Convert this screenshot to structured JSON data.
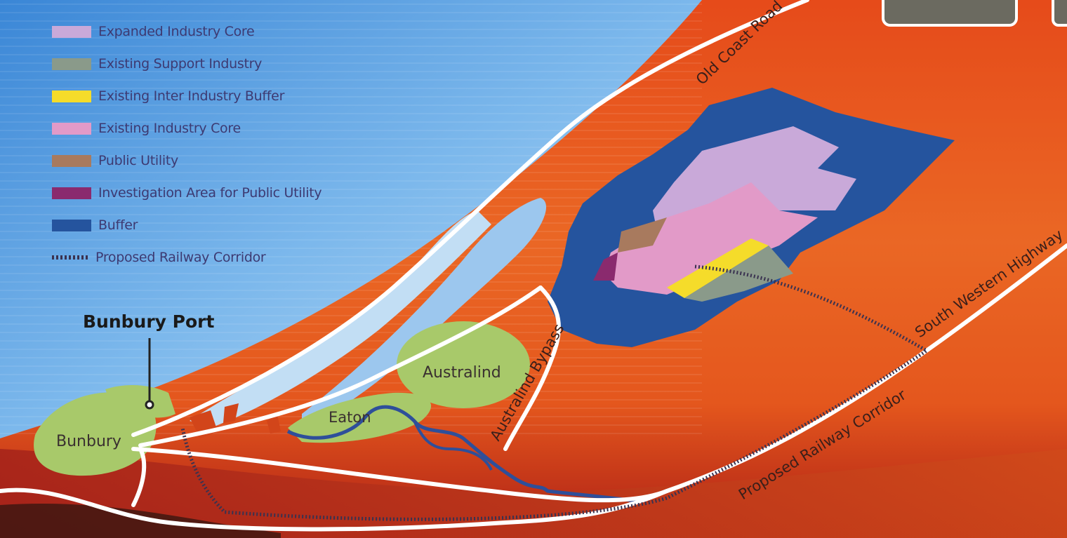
{
  "legend": {
    "items": [
      {
        "label": "Expanded Industry Core",
        "color": "#c9a9d9"
      },
      {
        "label": "Existing Support Industry",
        "color": "#8a9a8a"
      },
      {
        "label": "Existing Inter Industry Buffer",
        "color": "#f5dc2a"
      },
      {
        "label": "Existing Industry Core",
        "color": "#e29ac8"
      },
      {
        "label": "Public Utility",
        "color": "#a87a5e"
      },
      {
        "label": "Investigation Area for Public Utility",
        "color": "#8a2a6e"
      },
      {
        "label": "Buffer",
        "color": "#25549e"
      },
      {
        "label": "Proposed Railway Corridor",
        "color": "#3a3250",
        "icon": "dotted-line"
      }
    ]
  },
  "map_labels": {
    "bunbury_port": "Bunbury Port",
    "bunbury": "Bunbury",
    "eaton": "Eaton",
    "australind": "Australind",
    "old_coast_road": "Old Coast Road",
    "australind_bypass": "Australind Bypass",
    "south_western_highway": "South Western Highway",
    "proposed_railway_corridor": "Proposed Railway Corridor"
  },
  "colors": {
    "sea": "#3f8fd8",
    "land": "#e6641e",
    "land_dark": "#a8201a",
    "town": "#a8c96a",
    "road": "#ffffff",
    "river": "#2e4f9a"
  }
}
